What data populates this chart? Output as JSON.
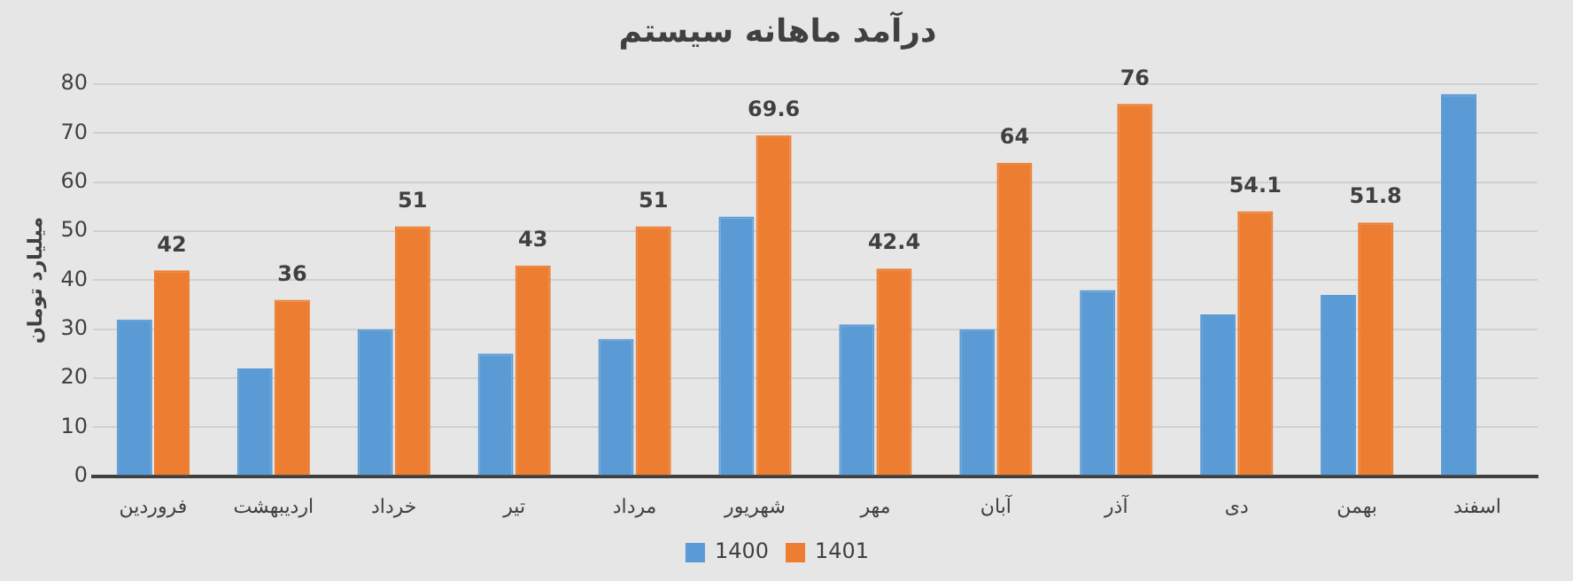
{
  "chart_data": {
    "type": "bar",
    "title": "درآمد ماهانه سیستم",
    "ylabel": "میلیارد تومان",
    "categories": [
      "فروردین",
      "اردیبهشت",
      "خرداد",
      "تیر",
      "مرداد",
      "شهریور",
      "مهر",
      "آبان",
      "آذر",
      "دی",
      "بهمن",
      "اسفند"
    ],
    "series": [
      {
        "name": "1400",
        "color": "#5b9bd5",
        "values": [
          32,
          22,
          30,
          25,
          28,
          53,
          31,
          30,
          38,
          33,
          37,
          78
        ]
      },
      {
        "name": "1401",
        "color": "#ed7d31",
        "values": [
          42,
          36,
          51,
          43,
          51,
          69.6,
          42.4,
          64,
          76,
          54.1,
          51.8,
          null
        ],
        "value_labels": [
          "42",
          "36",
          "51",
          "43",
          "51",
          "69.6",
          "42.4",
          "64",
          "76",
          "54.1",
          "51.8",
          null
        ]
      }
    ],
    "ylim": [
      0,
      80
    ],
    "yticks": [
      0,
      10,
      20,
      30,
      40,
      50,
      60,
      70,
      80
    ],
    "grid": "y",
    "legend": "bottom"
  }
}
